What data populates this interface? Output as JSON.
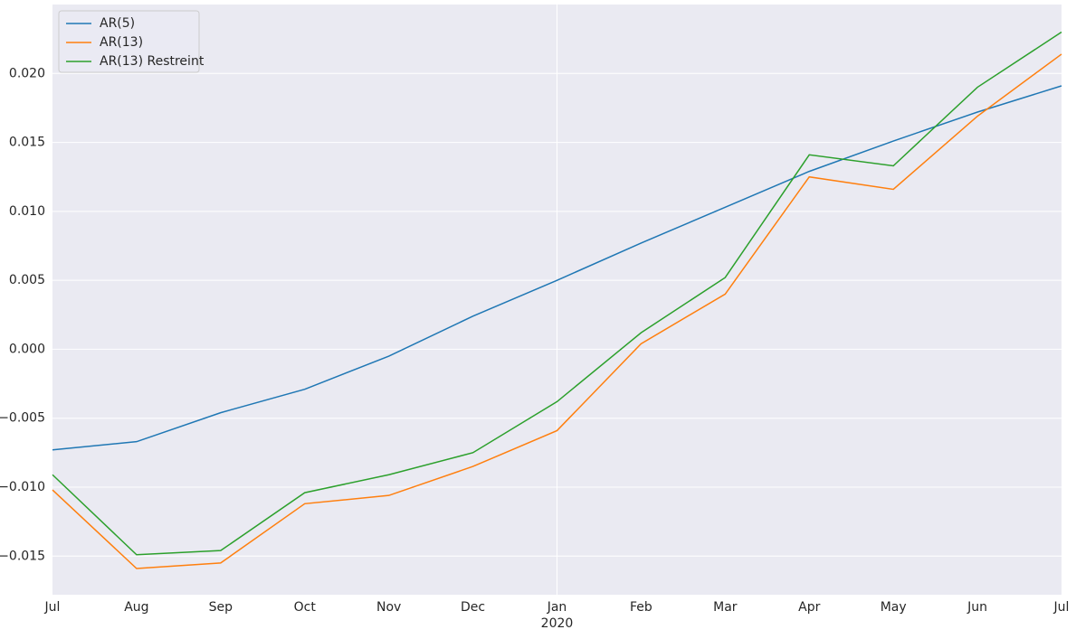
{
  "chart_data": {
    "type": "line",
    "categories": [
      "Jul",
      "Aug",
      "Sep",
      "Oct",
      "Nov",
      "Dec",
      "Jan",
      "Feb",
      "Mar",
      "Apr",
      "May",
      "Jun",
      "Jul"
    ],
    "year_labels": [
      null,
      null,
      null,
      null,
      null,
      null,
      "2020",
      null,
      null,
      null,
      null,
      null,
      null
    ],
    "series": [
      {
        "name": "AR(5)",
        "color": "#1f77b4",
        "values": [
          -0.0073,
          -0.0067,
          -0.0046,
          -0.0029,
          -0.0005,
          0.0024,
          0.005,
          0.0077,
          0.0103,
          0.0129,
          0.0151,
          0.0172,
          0.0191
        ]
      },
      {
        "name": "AR(13)",
        "color": "#ff7f0e",
        "values": [
          -0.0102,
          -0.0159,
          -0.0155,
          -0.0112,
          -0.0106,
          -0.0085,
          -0.0059,
          0.0004,
          0.004,
          0.0125,
          0.0116,
          0.0169,
          0.0214
        ]
      },
      {
        "name": "AR(13) Restreint",
        "color": "#2ca02c",
        "values": [
          -0.0091,
          -0.0149,
          -0.0146,
          -0.0104,
          -0.0091,
          -0.0075,
          -0.0038,
          0.0012,
          0.0052,
          0.0141,
          0.0133,
          0.019,
          0.023
        ]
      }
    ],
    "ylim": [
      -0.0178,
      0.025
    ],
    "yticks": [
      {
        "value": -0.015,
        "label": "−0.015"
      },
      {
        "value": -0.01,
        "label": "−0.010"
      },
      {
        "value": -0.005,
        "label": "−0.005"
      },
      {
        "value": 0,
        "label": "0.000"
      },
      {
        "value": 0.005,
        "label": "0.005"
      },
      {
        "value": 0.01,
        "label": "0.010"
      },
      {
        "value": 0.015,
        "label": "0.015"
      },
      {
        "value": 0.02,
        "label": "0.020"
      }
    ],
    "grid": true,
    "legend": "upper-left"
  }
}
